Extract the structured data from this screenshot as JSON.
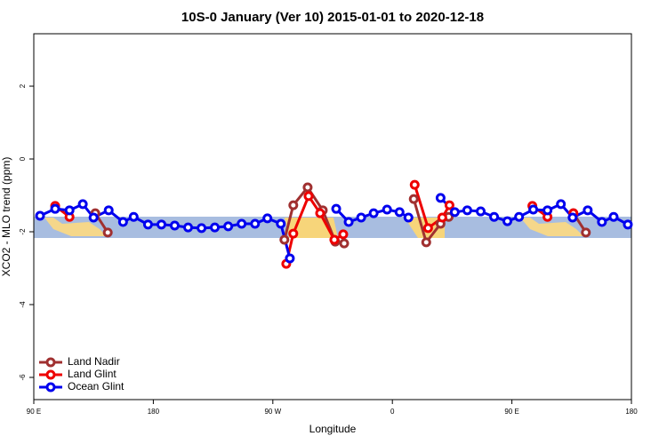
{
  "chart_data": {
    "type": "line",
    "title": "10S-0 January (Ver 10)   2015-01-01 to 2020-12-18",
    "x_label": "Longitude",
    "y_label": "XCO2 - MLO trend (ppm)",
    "xlim": [
      90,
      540
    ],
    "ylim": [
      -6.61,
      3.44
    ],
    "xticks": [
      {
        "value": 90,
        "label": "90 E"
      },
      {
        "value": 180,
        "label": "180"
      },
      {
        "value": 270,
        "label": "90 W"
      },
      {
        "value": 360,
        "label": "0"
      },
      {
        "value": 450,
        "label": "90 E"
      },
      {
        "value": 540,
        "label": "180"
      }
    ],
    "yticks": [
      -6,
      -4,
      -2,
      0,
      2
    ],
    "legend": "bottom-left",
    "series": [
      {
        "name": "Land Nadir",
        "color": "#a03030",
        "x": [
          136.3,
          145.7,
          null,
          278.7,
          285.4,
          296.2,
          307.6,
          317.0,
          323.7,
          null,
          376.1,
          385.5,
          396.3,
          402.4,
          null,
          496.3,
          505.7
        ],
        "values": [
          -1.49,
          -2.02,
          null,
          -2.22,
          -1.27,
          -0.78,
          -1.41,
          -2.27,
          -2.32,
          null,
          -1.1,
          -2.29,
          -1.78,
          -1.59,
          null,
          -1.49,
          -2.02
        ]
      },
      {
        "name": "Land Glint",
        "color": "#ee0000",
        "x": [
          106.1,
          116.9,
          null,
          280.1,
          285.4,
          296.9,
          305.6,
          316.3,
          323.0,
          null,
          376.8,
          386.9,
          397.6,
          403.0,
          null,
          465.4,
          476.8,
          null,
          496.3
        ],
        "values": [
          -1.29,
          -1.59,
          null,
          -2.88,
          -2.05,
          -1.02,
          -1.49,
          -2.22,
          -2.07,
          null,
          -0.71,
          -1.9,
          -1.61,
          -1.27,
          null,
          -1.29,
          -1.59,
          null,
          -1.49
        ]
      },
      {
        "name": "Ocean Glint",
        "color": "#0000ee",
        "x": [
          94.7,
          106.1,
          116.9,
          126.9,
          135.0,
          146.4,
          157.2,
          165.2,
          176.0,
          186.1,
          196.1,
          206.2,
          216.3,
          226.3,
          236.4,
          246.5,
          256.6,
          265.9,
          276.0,
          282.8,
          null,
          317.7,
          327.1,
          336.5,
          345.9,
          356.0,
          365.4,
          372.1,
          null,
          396.3,
          407.0,
          416.4,
          426.5,
          436.6,
          446.6,
          455.4,
          466.1,
          476.8,
          486.9,
          495.7,
          507.1,
          517.8,
          526.6,
          537.3
        ],
        "values": [
          -1.56,
          -1.37,
          -1.41,
          -1.24,
          -1.61,
          -1.41,
          -1.73,
          -1.59,
          -1.8,
          -1.8,
          -1.83,
          -1.88,
          -1.9,
          -1.88,
          -1.85,
          -1.78,
          -1.78,
          -1.63,
          -1.78,
          -2.73,
          null,
          -1.37,
          -1.73,
          -1.61,
          -1.49,
          -1.39,
          -1.46,
          -1.61,
          null,
          -1.07,
          -1.46,
          -1.41,
          -1.44,
          -1.59,
          -1.71,
          -1.59,
          -1.39,
          -1.41,
          -1.24,
          -1.61,
          -1.41,
          -1.73,
          -1.59,
          -1.8
        ]
      }
    ]
  }
}
